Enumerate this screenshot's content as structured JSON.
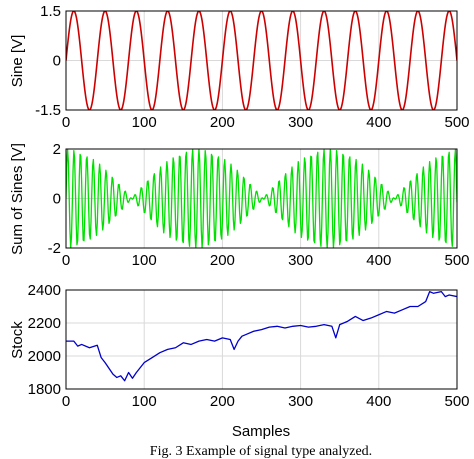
{
  "caption": "Fig. 3 Example of signal type analyzed.",
  "chart_data": [
    {
      "type": "line",
      "ylabel": "Sine [V]",
      "xlabel": "",
      "xlim": [
        0,
        500
      ],
      "ylim": [
        -1.5,
        1.5
      ],
      "xticks": [
        "0",
        "100",
        "200",
        "300",
        "400",
        "500"
      ],
      "yticks": [
        "1.5",
        "0",
        "-1.5"
      ],
      "grid": true,
      "color": "#cc0000",
      "series": [
        {
          "formula": "y = 1.5*sin(2*pi*x/40)",
          "period_samples": 40,
          "amplitude": 1.5
        }
      ]
    },
    {
      "type": "line",
      "ylabel": "Sum of Sines [V]",
      "xlabel": "",
      "xlim": [
        0,
        500
      ],
      "ylim": [
        -2,
        2
      ],
      "xticks": [
        "0",
        "100",
        "200",
        "300",
        "400",
        "500"
      ],
      "yticks": [
        "2",
        "0",
        "-2"
      ],
      "grid": true,
      "color": "#00e000",
      "series": [
        {
          "formula": "y = sin(2*pi*x/8) + sin(2*pi*x/8.4)",
          "components": [
            {
              "amplitude": 1,
              "period_samples": 8
            },
            {
              "amplitude": 1,
              "period_samples": 8.4
            }
          ]
        }
      ]
    },
    {
      "type": "line",
      "ylabel": "Stock",
      "xlabel": "Samples",
      "xlim": [
        0,
        500
      ],
      "ylim": [
        1800,
        2400
      ],
      "xticks": [
        "0",
        "100",
        "200",
        "300",
        "400",
        "500"
      ],
      "yticks": [
        "2400",
        "2200",
        "2000",
        "1800"
      ],
      "grid": true,
      "color": "#0000cc",
      "series": [
        {
          "x": [
            0,
            10,
            15,
            20,
            30,
            40,
            45,
            50,
            60,
            65,
            70,
            75,
            80,
            85,
            90,
            100,
            110,
            120,
            130,
            140,
            150,
            160,
            170,
            180,
            190,
            200,
            210,
            215,
            220,
            225,
            230,
            240,
            250,
            260,
            270,
            280,
            290,
            300,
            310,
            320,
            330,
            340,
            345,
            350,
            360,
            370,
            380,
            390,
            400,
            410,
            420,
            430,
            440,
            450,
            460,
            465,
            470,
            480,
            485,
            490,
            500
          ],
          "y": [
            2090,
            2090,
            2060,
            2070,
            2050,
            2065,
            1990,
            1960,
            1890,
            1870,
            1880,
            1850,
            1900,
            1865,
            1900,
            1960,
            1990,
            2020,
            2040,
            2050,
            2080,
            2070,
            2090,
            2100,
            2090,
            2110,
            2100,
            2040,
            2090,
            2120,
            2130,
            2150,
            2160,
            2175,
            2180,
            2170,
            2180,
            2185,
            2175,
            2180,
            2190,
            2180,
            2110,
            2190,
            2210,
            2240,
            2215,
            2230,
            2250,
            2270,
            2260,
            2280,
            2300,
            2300,
            2330,
            2390,
            2380,
            2390,
            2360,
            2370,
            2360
          ]
        }
      ]
    }
  ]
}
